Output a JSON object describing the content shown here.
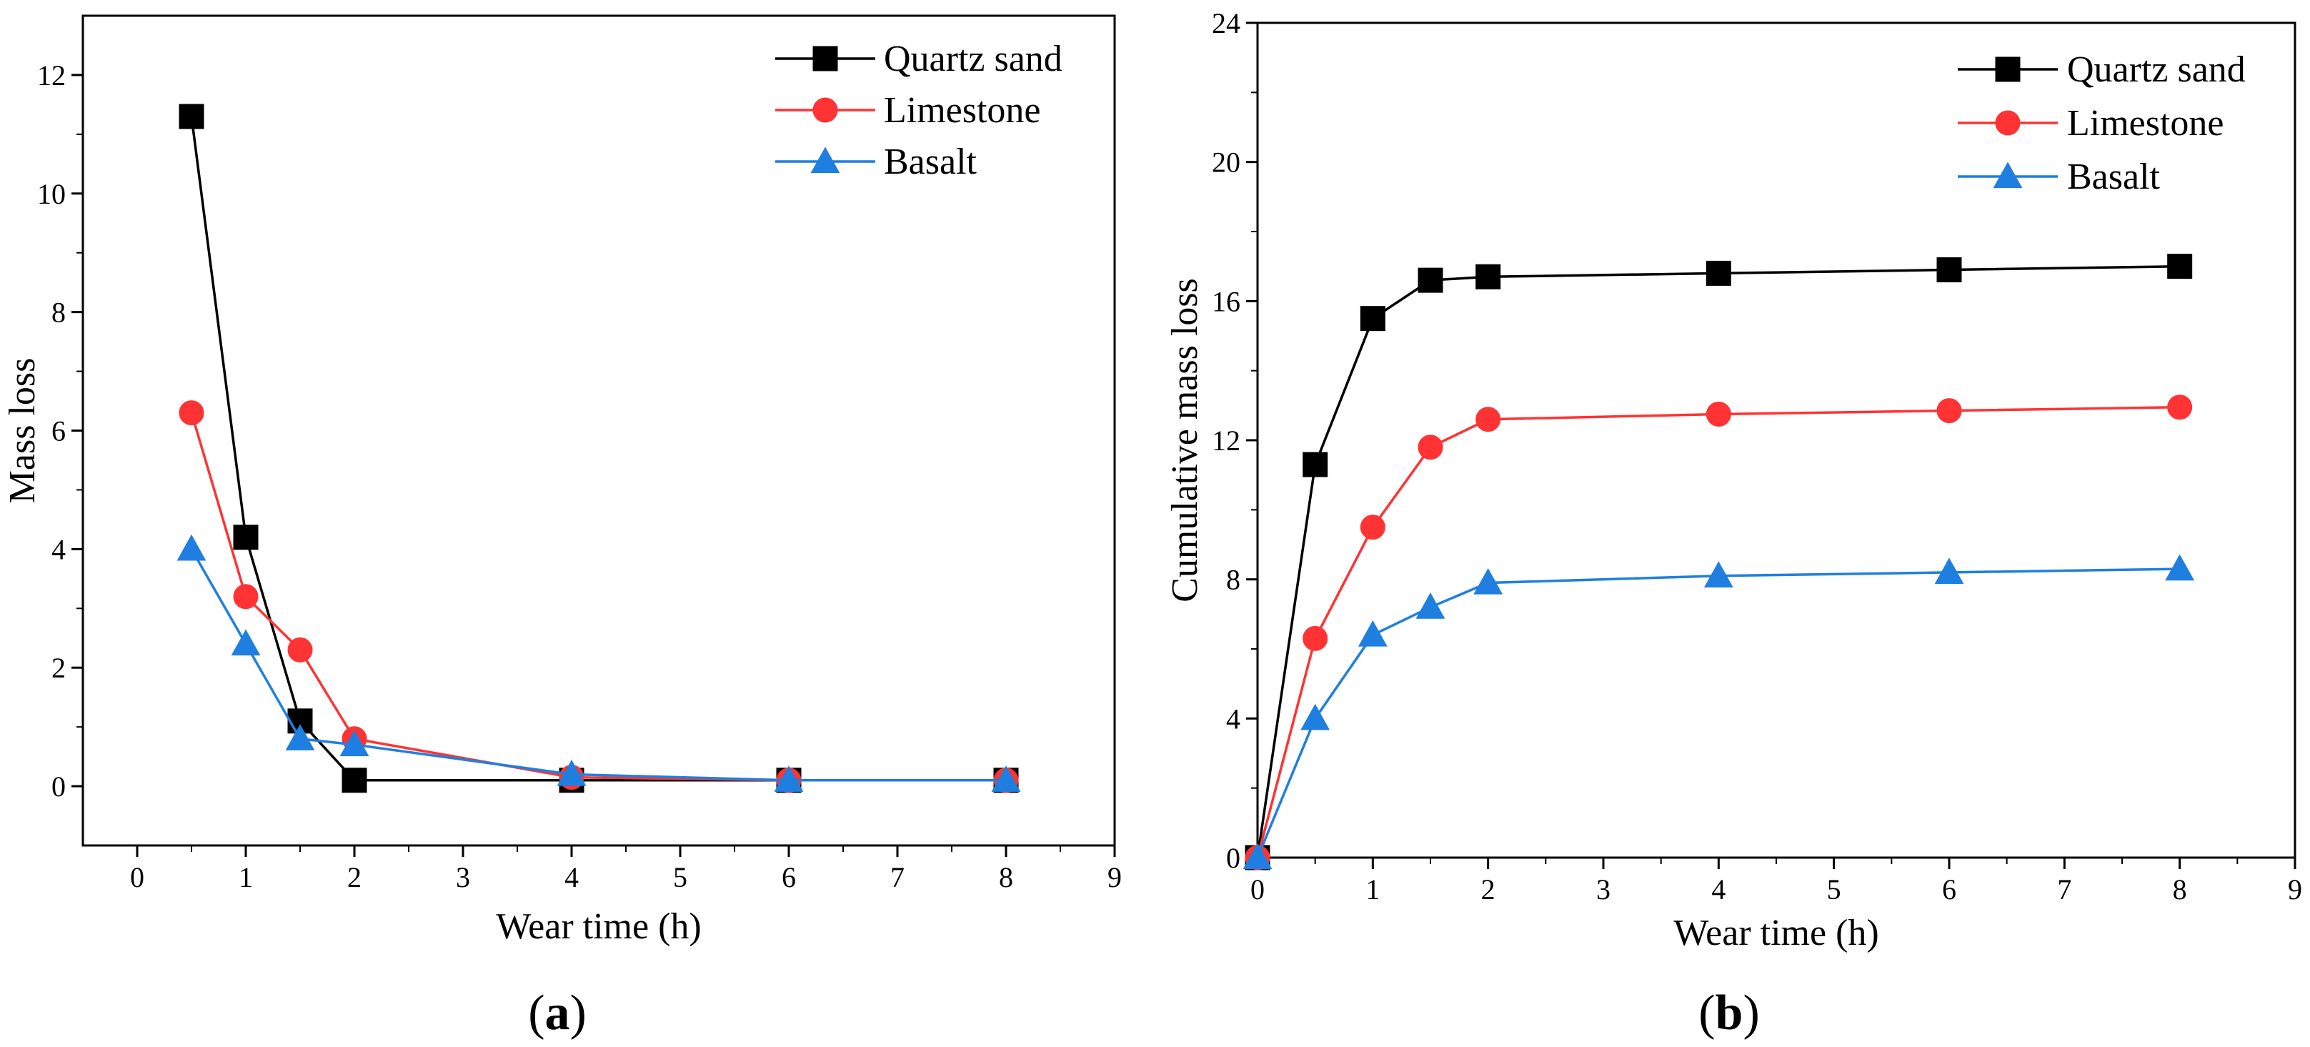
{
  "chart_data": [
    {
      "type": "line",
      "panel_label": "a",
      "title": "",
      "xlabel": "Wear time (h)",
      "ylabel": "Mass loss",
      "xlim": [
        -0.5,
        9
      ],
      "ylim": [
        -1,
        13
      ],
      "xticks": [
        0,
        1,
        2,
        3,
        4,
        5,
        6,
        7,
        8,
        9
      ],
      "yticks": [
        0,
        2,
        4,
        6,
        8,
        10,
        12
      ],
      "legend_position": "top-right",
      "series": [
        {
          "name": "Quartz sand",
          "color": "#000000",
          "marker": "square",
          "x": [
            0.5,
            1,
            1.5,
            2,
            4,
            6,
            8
          ],
          "y": [
            11.3,
            4.2,
            1.1,
            0.1,
            0.1,
            0.1,
            0.1
          ]
        },
        {
          "name": "Limestone",
          "color": "#ff3333",
          "marker": "circle",
          "x": [
            0.5,
            1,
            1.5,
            2,
            4,
            6,
            8
          ],
          "y": [
            6.3,
            3.2,
            2.3,
            0.8,
            0.15,
            0.1,
            0.1
          ]
        },
        {
          "name": "Basalt",
          "color": "#1f7fe0",
          "marker": "triangle",
          "x": [
            0.5,
            1,
            1.5,
            2,
            4,
            6,
            8
          ],
          "y": [
            4.0,
            2.4,
            0.8,
            0.7,
            0.2,
            0.1,
            0.1
          ]
        }
      ]
    },
    {
      "type": "line",
      "panel_label": "b",
      "title": "",
      "xlabel": "Wear time (h)",
      "ylabel": "Cumulative mass loss",
      "xlim": [
        0,
        9
      ],
      "ylim": [
        0,
        24
      ],
      "xticks": [
        0,
        1,
        2,
        3,
        4,
        5,
        6,
        7,
        8,
        9
      ],
      "yticks": [
        0,
        4,
        8,
        12,
        16,
        20,
        24
      ],
      "legend_position": "top-right",
      "series": [
        {
          "name": "Quartz sand",
          "color": "#000000",
          "marker": "square",
          "x": [
            0,
            0.5,
            1,
            1.5,
            2,
            4,
            6,
            8
          ],
          "y": [
            0,
            11.3,
            15.5,
            16.6,
            16.7,
            16.8,
            16.9,
            17.0
          ]
        },
        {
          "name": "Limestone",
          "color": "#ff3333",
          "marker": "circle",
          "x": [
            0,
            0.5,
            1,
            1.5,
            2,
            4,
            6,
            8
          ],
          "y": [
            0,
            6.3,
            9.5,
            11.8,
            12.6,
            12.75,
            12.85,
            12.95
          ]
        },
        {
          "name": "Basalt",
          "color": "#1f7fe0",
          "marker": "triangle",
          "x": [
            0,
            0.5,
            1,
            1.5,
            2,
            4,
            6,
            8
          ],
          "y": [
            0,
            4.0,
            6.4,
            7.2,
            7.9,
            8.1,
            8.2,
            8.3
          ]
        }
      ]
    }
  ]
}
